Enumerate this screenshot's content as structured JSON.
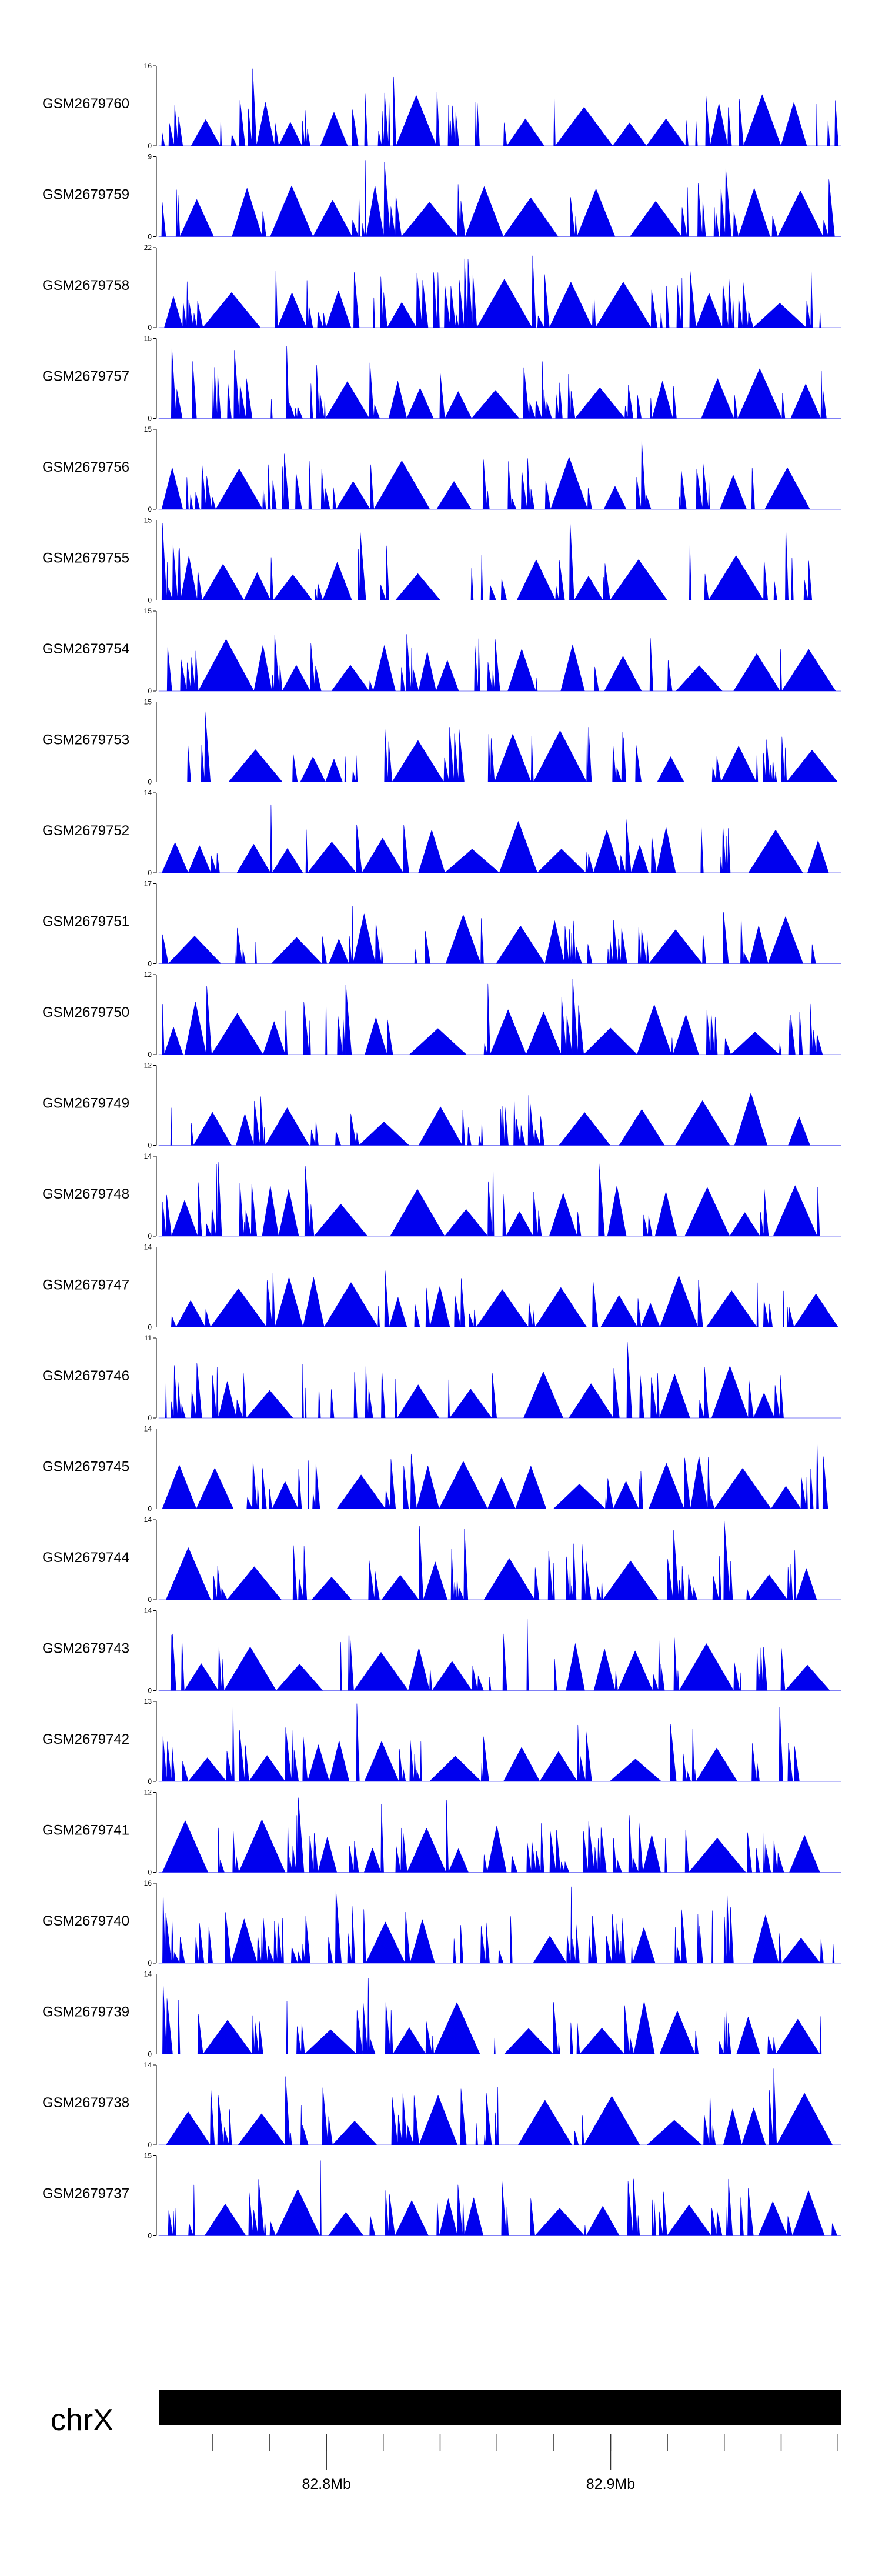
{
  "chart_data": {
    "type": "area",
    "chromosome": "chrX",
    "x_range_mb": [
      82.741,
      82.981
    ],
    "scale_ticks": [
      {
        "value_mb": 82.8,
        "label": "82.8Mb"
      },
      {
        "value_mb": 82.9,
        "label": "82.9Mb"
      }
    ],
    "series_color": "#0000ee",
    "series": [
      {
        "name": "GSM2679760",
        "ymax": 16,
        "seed": 11
      },
      {
        "name": "GSM2679759",
        "ymax": 9,
        "seed": 23
      },
      {
        "name": "GSM2679758",
        "ymax": 22,
        "seed": 37
      },
      {
        "name": "GSM2679757",
        "ymax": 15,
        "seed": 41
      },
      {
        "name": "GSM2679756",
        "ymax": 15,
        "seed": 53
      },
      {
        "name": "GSM2679755",
        "ymax": 15,
        "seed": 67
      },
      {
        "name": "GSM2679754",
        "ymax": 15,
        "seed": 71
      },
      {
        "name": "GSM2679753",
        "ymax": 15,
        "seed": 83
      },
      {
        "name": "GSM2679752",
        "ymax": 14,
        "seed": 97
      },
      {
        "name": "GSM2679751",
        "ymax": 17,
        "seed": 101
      },
      {
        "name": "GSM2679750",
        "ymax": 12,
        "seed": 113
      },
      {
        "name": "GSM2679749",
        "ymax": 12,
        "seed": 127
      },
      {
        "name": "GSM2679748",
        "ymax": 14,
        "seed": 131
      },
      {
        "name": "GSM2679747",
        "ymax": 14,
        "seed": 149
      },
      {
        "name": "GSM2679746",
        "ymax": 11,
        "seed": 151
      },
      {
        "name": "GSM2679745",
        "ymax": 14,
        "seed": 163
      },
      {
        "name": "GSM2679744",
        "ymax": 14,
        "seed": 173
      },
      {
        "name": "GSM2679743",
        "ymax": 14,
        "seed": 181
      },
      {
        "name": "GSM2679742",
        "ymax": 13,
        "seed": 191
      },
      {
        "name": "GSM2679741",
        "ymax": 12,
        "seed": 197
      },
      {
        "name": "GSM2679740",
        "ymax": 16,
        "seed": 211
      },
      {
        "name": "GSM2679739",
        "ymax": 14,
        "seed": 223
      },
      {
        "name": "GSM2679738",
        "ymax": 14,
        "seed": 227
      },
      {
        "name": "GSM2679737",
        "ymax": 15,
        "seed": 239
      }
    ]
  }
}
